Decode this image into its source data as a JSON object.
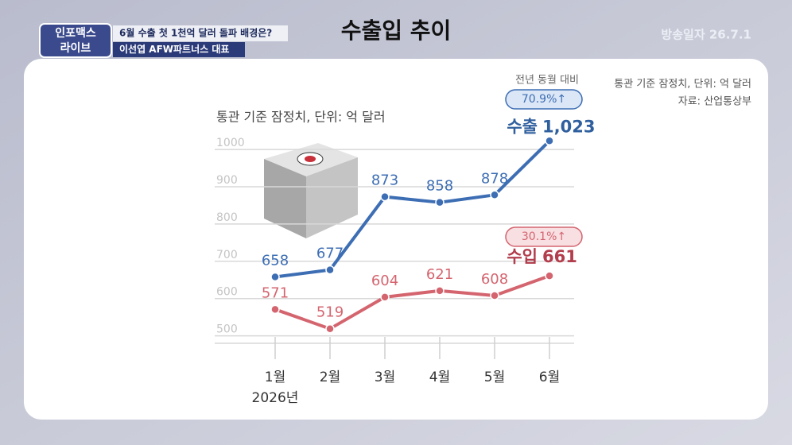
{
  "header": {
    "logo": [
      "인포맥스",
      "라이브"
    ],
    "headline": "6월 수출 첫 1천억 달러 돌파 배경은?",
    "guest": "이선엽 AFW파트너스 대표",
    "title": "수출입 추이",
    "broadcast_date": "방송일자 26.7.1"
  },
  "chart_data": {
    "type": "line",
    "subtitle": "통관 기준 잠정치, 단위: 억 달러",
    "note": "통관 기준 잠정치, 단위: 억 달러",
    "source": "자료: 산업통상부",
    "yoy_label": "전년 동월 대비",
    "categories": [
      "1월",
      "2월",
      "3월",
      "4월",
      "5월",
      "6월"
    ],
    "x_year": "2026년",
    "series": [
      {
        "name": "수출",
        "color": "#3d6eb4",
        "values": [
          658,
          677,
          873,
          858,
          878,
          1023
        ],
        "value_labels": [
          "658",
          "677",
          "873",
          "858",
          "878",
          "1,023"
        ],
        "change": "70.9%↑"
      },
      {
        "name": "수입",
        "color": "#d4656f",
        "values": [
          571,
          519,
          604,
          621,
          608,
          661
        ],
        "value_labels": [
          "571",
          "519",
          "604",
          "621",
          "608",
          "661"
        ],
        "change": "30.1%↑"
      }
    ],
    "ylim": [
      480,
      1030
    ],
    "yticks": [
      500,
      600,
      700,
      800,
      900,
      1000
    ],
    "grid": true
  }
}
